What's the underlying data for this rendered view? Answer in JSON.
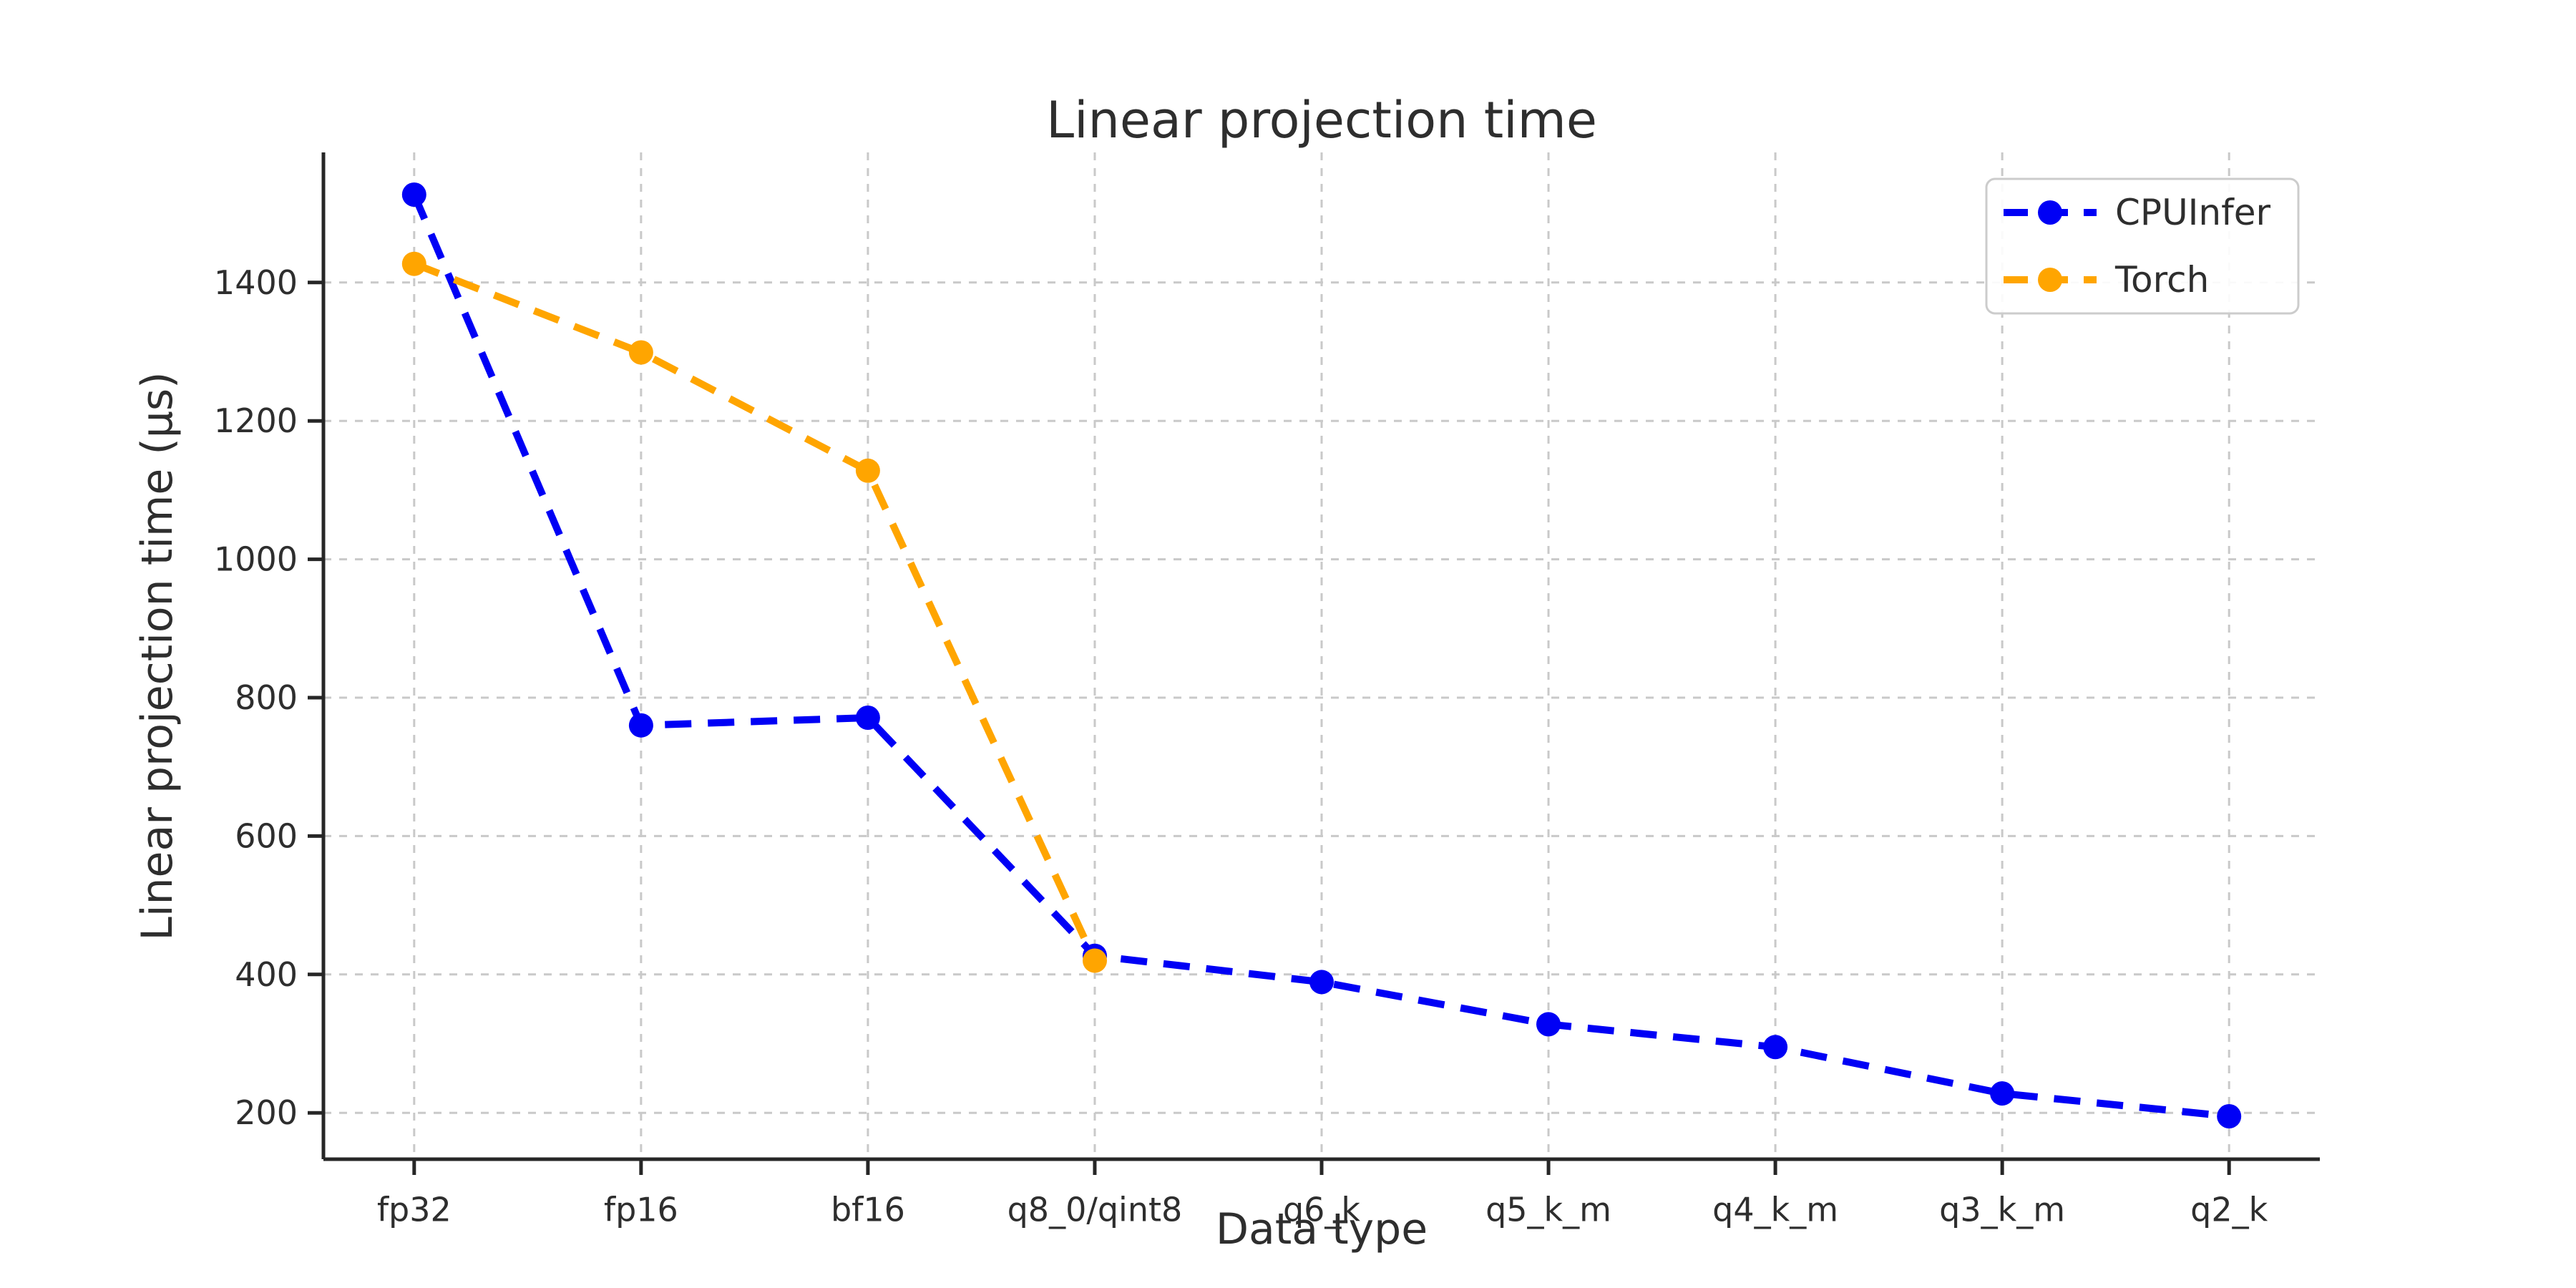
{
  "figure": {
    "title": "Linear projection time",
    "xlabel": "Data type",
    "ylabel": "Linear projection time (μs)"
  },
  "legend": {
    "position": "upper right",
    "items": [
      {
        "label": "CPUInfer",
        "color": "#0000f5"
      },
      {
        "label": "Torch",
        "color": "#ffa500"
      }
    ]
  },
  "chart_data": {
    "type": "line",
    "title": "Linear projection time",
    "xlabel": "Data type",
    "ylabel": "Linear projection time (μs)",
    "categories": [
      "fp32",
      "fp16",
      "bf16",
      "q8_0/qint8",
      "q6_k",
      "q5_k_m",
      "q4_k_m",
      "q3_k_m",
      "q2_k"
    ],
    "series": [
      {
        "name": "CPUInfer",
        "color": "#0000f5",
        "linestyle": "dashed",
        "marker": "circle",
        "values": [
          1527,
          760,
          771,
          427,
          389,
          328,
          295,
          228,
          195
        ]
      },
      {
        "name": "Torch",
        "color": "#ffa500",
        "linestyle": "dashed",
        "marker": "circle",
        "values": [
          1427,
          1299,
          1128,
          420,
          null,
          null,
          null,
          null,
          null
        ]
      }
    ],
    "yticks": [
      200,
      400,
      600,
      800,
      1000,
      1200,
      1400
    ],
    "ylim": [
      133,
      1588
    ],
    "grid": true,
    "legend_position": "upper right"
  },
  "style": {
    "grid_color": "#c9c9c9",
    "spine_color": "#262626",
    "text_color": "#2e2e2e",
    "legend_border_color": "#cccccc",
    "background": "#ffffff"
  }
}
